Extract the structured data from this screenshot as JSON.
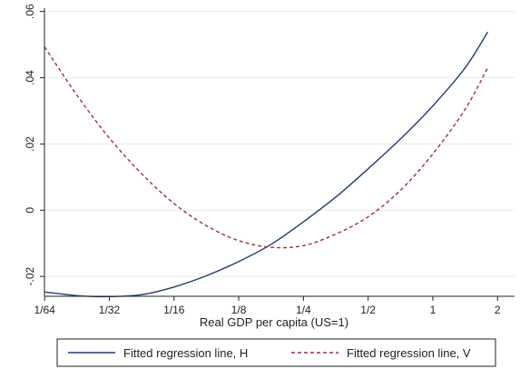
{
  "chart_data": {
    "type": "line",
    "xlabel": "Real GDP per capita (US=1)",
    "ylabel": "",
    "x_scale": "log2",
    "xlim": [
      0.0156,
      2.4
    ],
    "ylim": [
      -0.026,
      0.061
    ],
    "x_ticks": [
      {
        "value": 0.015625,
        "label": "1/64"
      },
      {
        "value": 0.03125,
        "label": "1/32"
      },
      {
        "value": 0.0625,
        "label": "1/16"
      },
      {
        "value": 0.125,
        "label": "1/8"
      },
      {
        "value": 0.25,
        "label": "1/4"
      },
      {
        "value": 0.5,
        "label": "1/2"
      },
      {
        "value": 1,
        "label": "1"
      },
      {
        "value": 2,
        "label": "2"
      }
    ],
    "y_ticks": [
      {
        "value": -0.02,
        "label": "-.02"
      },
      {
        "value": 0,
        "label": "0"
      },
      {
        "value": 0.02,
        "label": ".02"
      },
      {
        "value": 0.04,
        "label": ".04"
      },
      {
        "value": 0.06,
        "label": ".06"
      }
    ],
    "grid": "horizontal",
    "legend_position": "bottom",
    "series": [
      {
        "name": "Fitted regression line, H",
        "color": "#1f3d7a",
        "style": "solid",
        "x": [
          0.015625,
          0.0221,
          0.03125,
          0.0442,
          0.0625,
          0.0884,
          0.125,
          0.177,
          0.25,
          0.354,
          0.5,
          0.707,
          1.0,
          1.414,
          1.8
        ],
        "y": [
          -0.0247,
          -0.0258,
          -0.0261,
          -0.0255,
          -0.0232,
          -0.0198,
          -0.0155,
          -0.0103,
          -0.0035,
          0.004,
          0.0125,
          0.0215,
          0.0315,
          0.043,
          0.0538
        ]
      },
      {
        "name": "Fitted regression line, V",
        "color": "#a0303a",
        "style": "dashed",
        "x": [
          0.015625,
          0.0221,
          0.03125,
          0.0442,
          0.0625,
          0.0884,
          0.125,
          0.177,
          0.25,
          0.354,
          0.5,
          0.707,
          1.0,
          1.414,
          1.8
        ],
        "y": [
          0.0493,
          0.0347,
          0.0218,
          0.011,
          0.002,
          -0.0047,
          -0.0092,
          -0.0112,
          -0.0107,
          -0.0072,
          -0.002,
          0.006,
          0.017,
          0.0305,
          0.043
        ]
      }
    ]
  }
}
